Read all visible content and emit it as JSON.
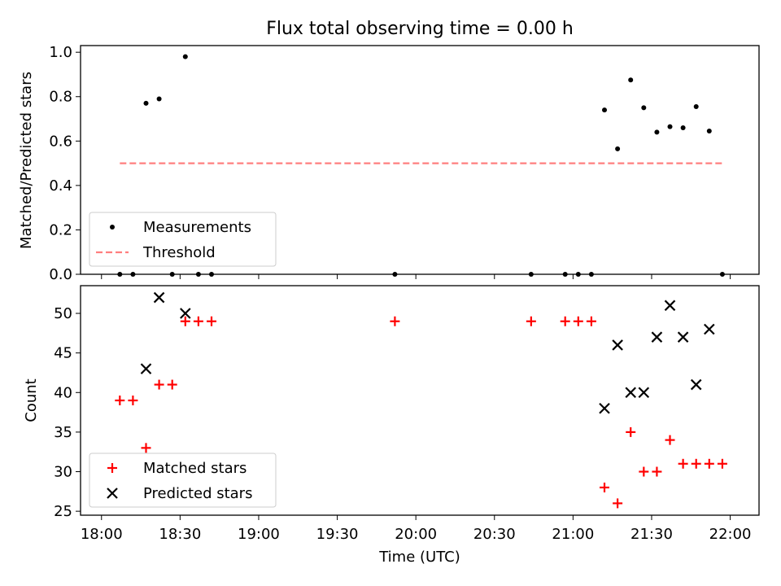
{
  "title": "Flux total observing time = 0.00 h",
  "xlabel": "Time (UTC)",
  "x_ticks": [
    "18:00",
    "18:30",
    "19:00",
    "19:30",
    "20:00",
    "20:30",
    "21:00",
    "21:30",
    "22:00"
  ],
  "colors": {
    "measurements": "#000000",
    "threshold": "#ff7f7f",
    "matched": "#ff0000",
    "predicted": "#000000"
  },
  "chart_data": [
    {
      "type": "scatter",
      "ylabel": "Matched/Predicted stars",
      "ylim": [
        0.0,
        1.03
      ],
      "y_ticks": [
        "0.0",
        "0.2",
        "0.4",
        "0.6",
        "0.8",
        "1.0"
      ],
      "grid": false,
      "legend_position": "lower-left",
      "series": [
        {
          "name": "Measurements",
          "marker": "dot",
          "x": [
            "18:07",
            "18:12",
            "18:17",
            "18:22",
            "18:27",
            "18:32",
            "18:37",
            "18:42",
            "19:52",
            "20:44",
            "20:57",
            "21:02",
            "21:07",
            "21:12",
            "21:17",
            "21:22",
            "21:27",
            "21:32",
            "21:37",
            "21:42",
            "21:47",
            "21:52",
            "21:57"
          ],
          "y": [
            0.0,
            0.0,
            0.77,
            0.79,
            0.0,
            0.98,
            0.0,
            0.0,
            0.0,
            0.0,
            0.0,
            0.0,
            0.0,
            0.74,
            0.565,
            0.875,
            0.75,
            0.64,
            0.665,
            0.66,
            0.755,
            0.645,
            0.0
          ]
        },
        {
          "name": "Threshold",
          "marker": "dashed-line",
          "x": [
            "18:07",
            "21:57"
          ],
          "y": [
            0.5,
            0.5
          ]
        }
      ]
    },
    {
      "type": "scatter",
      "ylabel": "Count",
      "ylim": [
        24.5,
        53.5
      ],
      "y_ticks": [
        "25",
        "30",
        "35",
        "40",
        "45",
        "50"
      ],
      "grid": false,
      "legend_position": "lower-left",
      "series": [
        {
          "name": "Matched stars",
          "marker": "plus",
          "x": [
            "18:07",
            "18:12",
            "18:17",
            "18:22",
            "18:27",
            "18:32",
            "18:37",
            "18:42",
            "19:52",
            "20:44",
            "20:57",
            "21:02",
            "21:07",
            "21:12",
            "21:17",
            "21:22",
            "21:27",
            "21:32",
            "21:37",
            "21:42",
            "21:47",
            "21:52",
            "21:57"
          ],
          "y": [
            39,
            39,
            33,
            41,
            41,
            49,
            49,
            49,
            49,
            49,
            49,
            49,
            49,
            28,
            26,
            35,
            30,
            30,
            34,
            31,
            31,
            31,
            31
          ]
        },
        {
          "name": "Predicted stars",
          "marker": "x",
          "x": [
            "18:17",
            "18:22",
            "18:32",
            "21:12",
            "21:17",
            "21:22",
            "21:27",
            "21:32",
            "21:37",
            "21:42",
            "21:47",
            "21:52"
          ],
          "y": [
            43,
            52,
            50,
            38,
            46,
            40,
            40,
            47,
            51,
            47,
            41,
            48
          ]
        }
      ]
    }
  ]
}
